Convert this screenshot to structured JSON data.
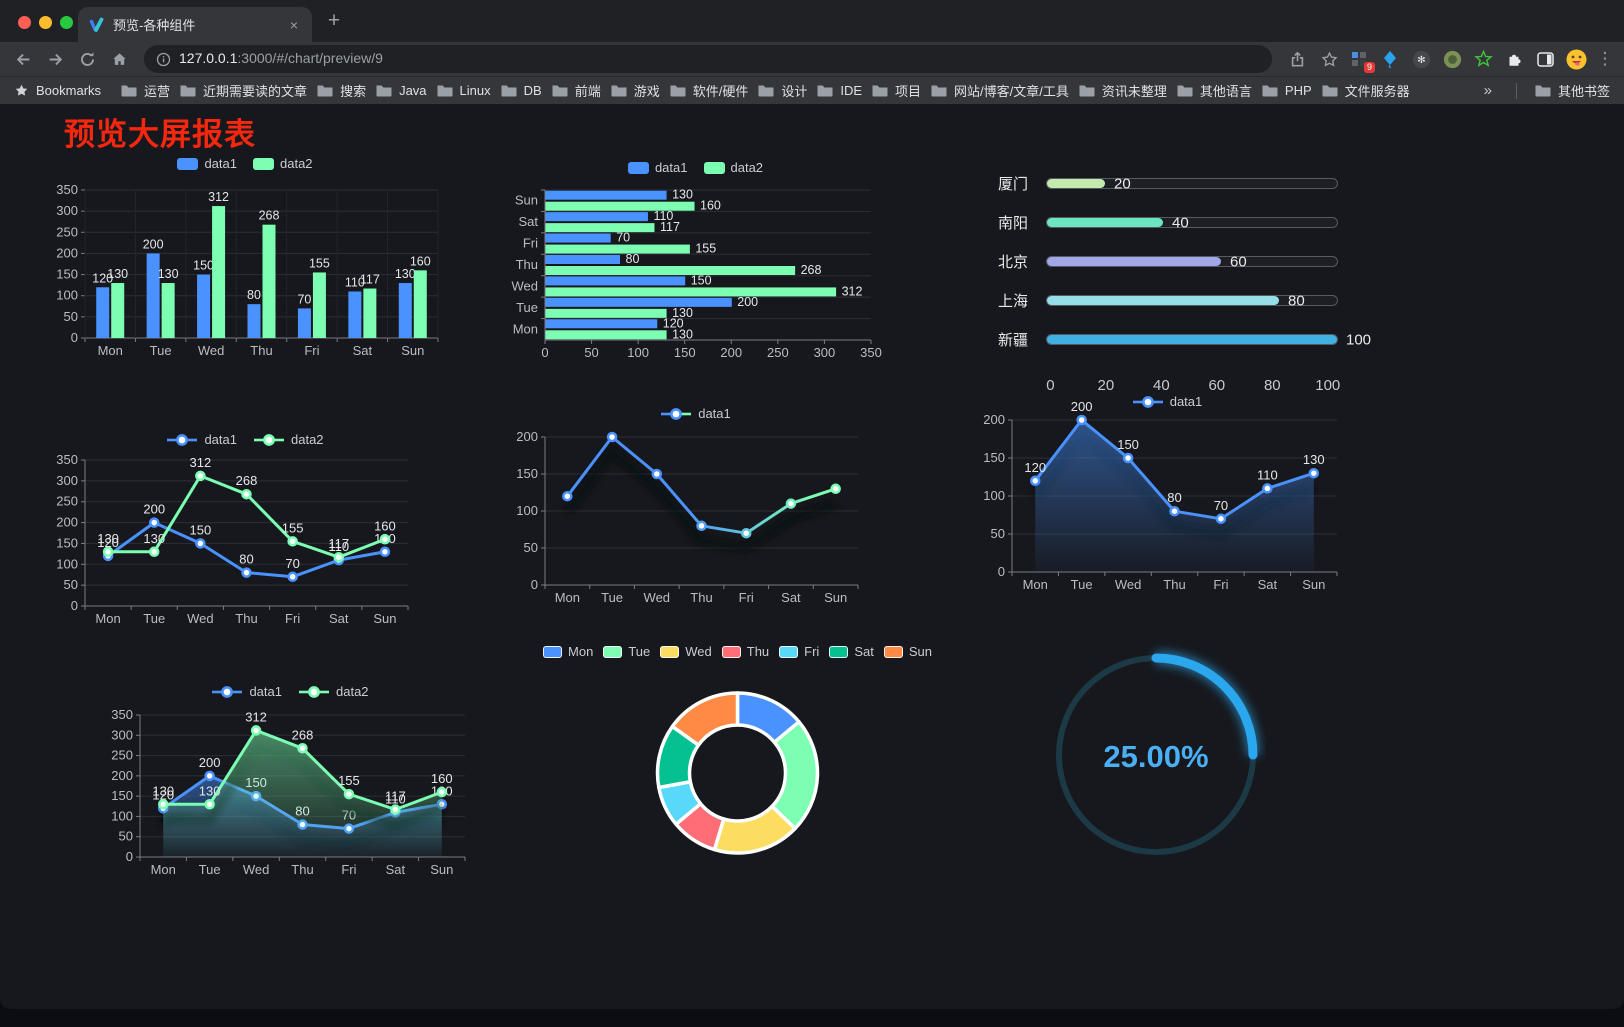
{
  "browser": {
    "traffic_lights": [
      "#ff5f57",
      "#febc2e",
      "#28c840"
    ],
    "tab_title": "预览-各种组件",
    "tab_close": "×",
    "new_tab": "+",
    "url_host": "127.0.0.1",
    "url_rest": ":3000/#/chart/preview/9",
    "bookmarks_label": "Bookmarks",
    "bookmarks": [
      "运营",
      "近期需要读的文章",
      "搜索",
      "Java",
      "Linux",
      "DB",
      "前端",
      "游戏",
      "软件/硬件",
      "设计",
      "IDE",
      "项目",
      "网站/博客/文章/工具",
      "资讯未整理",
      "其他语言",
      "PHP",
      "文件服务器"
    ],
    "overflow_chevron": "»",
    "other_bookmarks": "其他书签",
    "extension_badge": "9",
    "menu_icon": "⋮"
  },
  "page": {
    "title": "预览大屏报表"
  },
  "chart_data": [
    {
      "id": "grouped-bar",
      "type": "bar",
      "categories": [
        "Mon",
        "Tue",
        "Wed",
        "Thu",
        "Fri",
        "Sat",
        "Sun"
      ],
      "series": [
        {
          "name": "data1",
          "color": "#4992ff",
          "values": [
            120,
            200,
            150,
            80,
            70,
            110,
            130
          ]
        },
        {
          "name": "data2",
          "color": "#7cffb2",
          "values": [
            130,
            130,
            312,
            268,
            155,
            117,
            160
          ]
        }
      ],
      "ylim": [
        0,
        350
      ],
      "ytick_step": 50,
      "legend_position": "top",
      "grid": true,
      "show_labels": true
    },
    {
      "id": "grouped-hbar",
      "type": "bar-horizontal",
      "categories": [
        "Mon",
        "Tue",
        "Wed",
        "Thu",
        "Fri",
        "Sat",
        "Sun"
      ],
      "display_order_top_to_bottom": [
        "Sun",
        "Sat",
        "Fri",
        "Thu",
        "Wed",
        "Tue",
        "Mon"
      ],
      "series": [
        {
          "name": "data1",
          "color": "#4992ff",
          "values": [
            120,
            200,
            150,
            80,
            70,
            110,
            130
          ]
        },
        {
          "name": "data2",
          "color": "#7cffb2",
          "values": [
            130,
            130,
            312,
            268,
            155,
            117,
            160
          ]
        }
      ],
      "xlim": [
        0,
        350
      ],
      "xtick_step": 50,
      "legend_position": "top",
      "grid": true,
      "show_labels": true
    },
    {
      "id": "city-progress",
      "type": "progress-bars",
      "items": [
        {
          "label": "厦门",
          "value": 20,
          "color": "#c4ebad"
        },
        {
          "label": "南阳",
          "value": 40,
          "color": "#6be6c1"
        },
        {
          "label": "北京",
          "value": 60,
          "color": "#a0a7e6"
        },
        {
          "label": "上海",
          "value": 80,
          "color": "#96dee8"
        },
        {
          "label": "新疆",
          "value": 100,
          "color": "#3fb1e3"
        }
      ],
      "xlim": [
        0,
        100
      ],
      "xticks": [
        0,
        20,
        40,
        60,
        80,
        100
      ]
    },
    {
      "id": "dual-line",
      "type": "line",
      "categories": [
        "Mon",
        "Tue",
        "Wed",
        "Thu",
        "Fri",
        "Sat",
        "Sun"
      ],
      "series": [
        {
          "name": "data1",
          "color": "#4992ff",
          "values": [
            120,
            200,
            150,
            80,
            70,
            110,
            130
          ]
        },
        {
          "name": "data2",
          "color": "#7cffb2",
          "values": [
            130,
            130,
            312,
            268,
            155,
            117,
            160
          ]
        }
      ],
      "ylim": [
        0,
        350
      ],
      "ytick_step": 50,
      "legend_position": "top",
      "grid": true,
      "show_labels": true
    },
    {
      "id": "gradient-line",
      "type": "line",
      "categories": [
        "Mon",
        "Tue",
        "Wed",
        "Thu",
        "Fri",
        "Sat",
        "Sun"
      ],
      "series": [
        {
          "name": "data1",
          "color": "#4992ff",
          "color_gradient": [
            "#4992ff",
            "#7cffb2"
          ],
          "values": [
            120,
            200,
            150,
            80,
            70,
            110,
            130
          ]
        }
      ],
      "ylim": [
        0,
        200
      ],
      "ytick_step": 50,
      "legend_position": "top",
      "grid": true,
      "show_labels": false,
      "shadow": true
    },
    {
      "id": "single-area",
      "type": "area",
      "categories": [
        "Mon",
        "Tue",
        "Wed",
        "Thu",
        "Fri",
        "Sat",
        "Sun"
      ],
      "series": [
        {
          "name": "data1",
          "color": "#4992ff",
          "area": true,
          "values": [
            120,
            200,
            150,
            80,
            70,
            110,
            130
          ]
        }
      ],
      "ylim": [
        0,
        200
      ],
      "ytick_step": 50,
      "legend_position": "top",
      "grid": true,
      "show_labels": true,
      "shadow": true
    },
    {
      "id": "dual-area",
      "type": "area",
      "categories": [
        "Mon",
        "Tue",
        "Wed",
        "Thu",
        "Fri",
        "Sat",
        "Sun"
      ],
      "series": [
        {
          "name": "data1",
          "color": "#4992ff",
          "area": true,
          "values": [
            120,
            200,
            150,
            80,
            70,
            110,
            130
          ]
        },
        {
          "name": "data2",
          "color": "#7cffb2",
          "area": true,
          "values": [
            130,
            130,
            312,
            268,
            155,
            117,
            160
          ]
        }
      ],
      "ylim": [
        0,
        350
      ],
      "ytick_step": 50,
      "legend_position": "top",
      "grid": true,
      "show_labels": true,
      "shadow": true
    },
    {
      "id": "donut",
      "type": "pie",
      "items": [
        {
          "label": "Mon",
          "value": 120,
          "color": "#4992ff"
        },
        {
          "label": "Tue",
          "value": 200,
          "color": "#7cffb2"
        },
        {
          "label": "Wed",
          "value": 150,
          "color": "#fddd60"
        },
        {
          "label": "Thu",
          "value": 80,
          "color": "#ff6e76"
        },
        {
          "label": "Fri",
          "value": 70,
          "color": "#58d9f9"
        },
        {
          "label": "Sat",
          "value": 110,
          "color": "#05c091"
        },
        {
          "label": "Sun",
          "value": 130,
          "color": "#ff8a45"
        }
      ],
      "inner_radius": 48,
      "outer_radius": 80,
      "legend_position": "top"
    },
    {
      "id": "gauge",
      "type": "gauge",
      "value": 25,
      "label": "25.00%",
      "color": "#2ba7ee",
      "track_color": "#1c3946",
      "text_color": "#4aaff3"
    }
  ]
}
